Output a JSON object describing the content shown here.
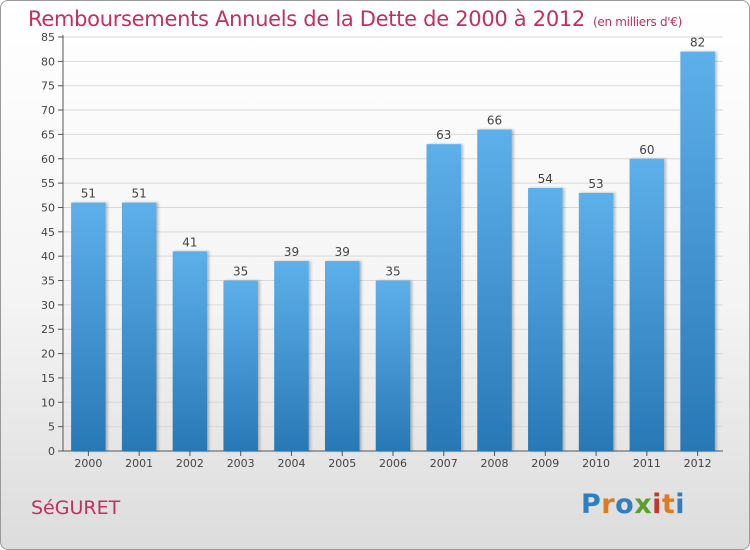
{
  "title": {
    "main": "Remboursements Annuels de la Dette de 2000 à 2012",
    "unit": "(en milliers d'€)"
  },
  "commune": "SéGURET",
  "logo": {
    "text": "Proxiti",
    "letter_colors": [
      "#2f7fbf",
      "#e07a1f",
      "#2f7fbf",
      "#5aa02c",
      "#c0392b",
      "#e07a1f",
      "#2f7fbf"
    ]
  },
  "colors": {
    "bar_top": "#5db0ea",
    "bar_bottom": "#2878b6",
    "title": "#c03060"
  },
  "chart_data": {
    "type": "bar",
    "categories": [
      "2000",
      "2001",
      "2002",
      "2003",
      "2004",
      "2005",
      "2006",
      "2007",
      "2008",
      "2009",
      "2010",
      "2011",
      "2012"
    ],
    "values": [
      51,
      51,
      41,
      35,
      39,
      39,
      35,
      63,
      66,
      54,
      53,
      60,
      82
    ],
    "ylim": [
      0,
      85
    ],
    "yticks": [
      0,
      5,
      10,
      15,
      20,
      25,
      30,
      35,
      40,
      45,
      50,
      55,
      60,
      65,
      70,
      75,
      80,
      85
    ],
    "grid": true,
    "data_labels": true
  }
}
